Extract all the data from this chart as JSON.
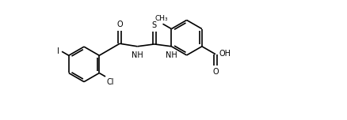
{
  "background_color": "#ffffff",
  "line_color": "#000000",
  "line_width": 1.2,
  "font_size": 7.0,
  "figsize": [
    4.38,
    1.52
  ],
  "dpi": 100,
  "xlim": [
    -0.5,
    9.5
  ],
  "ylim": [
    -2.2,
    2.0
  ]
}
